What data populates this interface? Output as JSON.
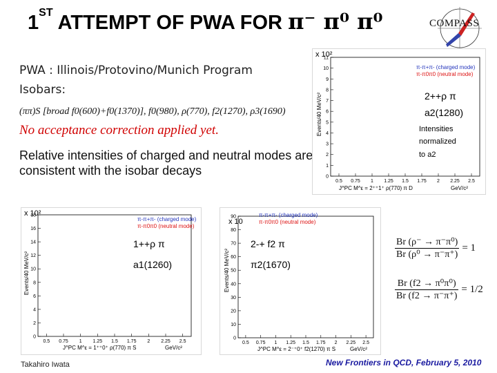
{
  "title": {
    "prefix": "1",
    "sup": "ST",
    "text": "ATTEMPT OF PWA FOR",
    "pions": "π⁻ π⁰ π⁰"
  },
  "logo": {
    "text": "COMPASS"
  },
  "pwa_line": "PWA : Illinois/Protovino/Munich Program",
  "isobars_label": "Isobars:",
  "isobar_eq": "(ππ)S [broad f0(600)+f0(1370)], f0(980), ρ(770), f2(1270), ρ3(1690)",
  "no_acceptance": "No acceptance correction applied yet.",
  "relative_text": "Relative intensities of charged and neutral modes  are consistent with the isobar decays",
  "plots": {
    "top_right": {
      "scale": "x 10²",
      "legend_charged": "π-π+π- (charged mode)",
      "legend_neutral": "π-π0π0 (neutral mode)",
      "ylabel": "Events/40 MeV/c²",
      "xlabel": "J^PC M^ε = 2⁺⁺1⁺ ρ(770) π D",
      "xunit": "GeV/c²",
      "xticks": [
        "0.5",
        "0.75",
        "1",
        "1.25",
        "1.5",
        "1.75",
        "2",
        "2.25",
        "2.5"
      ],
      "yticks": [
        "0",
        "1",
        "2",
        "3",
        "4",
        "5",
        "6",
        "7",
        "8",
        "9",
        "10",
        "11"
      ],
      "wave": "2++ρ π",
      "resonance": "a2(1280)",
      "note1": "Intensities",
      "note2": "normalized",
      "note3": "to  a2"
    },
    "bottom_left": {
      "scale": "x 10²",
      "legend_charged": "π-π+π- (charged mode)",
      "legend_neutral": "π-π0π0 (neutral mode)",
      "ylabel": "Events/40 MeV/c²",
      "xlabel": "J^PC M^ε = 1⁺⁺0⁺ ρ(770) π S",
      "xunit": "GeV/c²",
      "xticks": [
        "0.5",
        "0.75",
        "1",
        "1.25",
        "1.5",
        "1.75",
        "2",
        "2.25",
        "2.5"
      ],
      "yticks": [
        "0",
        "2",
        "4",
        "6",
        "8",
        "10",
        "12",
        "14",
        "16",
        "18"
      ],
      "wave": "1++ρ π",
      "resonance": "a1(1260)"
    },
    "bottom_mid": {
      "scale": "x 10",
      "legend_charged": "π-π+π- (charged mode)",
      "legend_neutral": "π-π0π0 (neutral mode)",
      "ylabel": "Events/40 MeV/c²",
      "xlabel": "J^PC M^ε = 2⁻⁺0⁺ f2(1270) π S",
      "xunit": "GeV/c²",
      "xticks": [
        "0.5",
        "0.75",
        "1",
        "1.25",
        "1.5",
        "1.75",
        "2",
        "2.25",
        "2.5"
      ],
      "yticks": [
        "0",
        "10",
        "20",
        "30",
        "40",
        "50",
        "60",
        "70",
        "80",
        "90"
      ],
      "wave": "2-+ f2 π",
      "resonance": "π2(1670)"
    }
  },
  "ratios": [
    {
      "num": "Br (ρ⁻ → π⁻π⁰)",
      "den": "Br (ρ⁰ → π⁻π⁺)",
      "val": "= 1"
    },
    {
      "num": "Br (f2 → π⁰π⁰)",
      "den": "Br (f2 → π⁻π⁺)",
      "val": "= 1/2"
    }
  ],
  "footer_left": "Takahiro Iwata",
  "footer_right": "New Frontiers in QCD,  February 5, 2010",
  "colors": {
    "charged": "#2233bb",
    "neutral": "#dd1111",
    "accent_red": "#d00000",
    "footer_blue": "#1a1aa0"
  }
}
